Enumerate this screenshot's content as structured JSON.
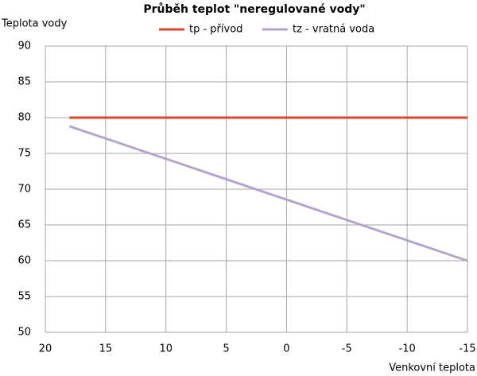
{
  "chart_data": {
    "type": "line",
    "title": "Průběh teplot \"neregulované vody\"",
    "y_label": "Teplota vody",
    "x_label": "Venkovní teplota",
    "series": [
      {
        "name": "tp - přívod",
        "color": "#e0452c",
        "x": [
          18,
          -15
        ],
        "values": [
          80,
          80
        ]
      },
      {
        "name": "tz - vratná voda",
        "color": "#b3a5cc",
        "x": [
          18,
          -15
        ],
        "values": [
          78.8,
          60
        ]
      }
    ],
    "xlim": [
      20,
      -15
    ],
    "xticks": [
      20,
      15,
      10,
      5,
      0,
      -5,
      -10,
      -15
    ],
    "ylim": [
      50,
      90
    ],
    "yticks": [
      50,
      55,
      60,
      65,
      70,
      75,
      80,
      85,
      90
    ],
    "grid": true
  }
}
